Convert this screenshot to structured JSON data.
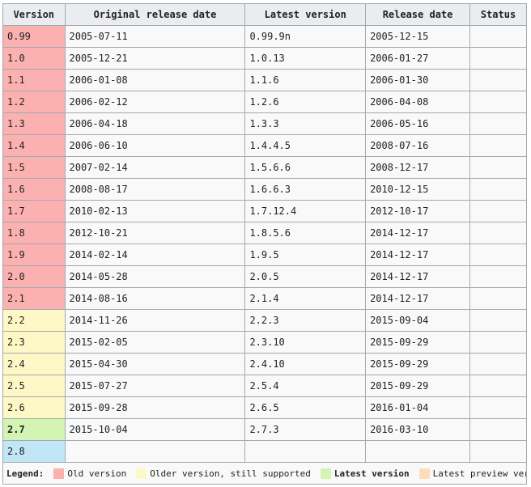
{
  "colors": {
    "header_bg": "#eaecf0",
    "border": "#a2a9b1",
    "cell_bg": "#f9f9f9",
    "old": "#fcb1b1",
    "older_supported": "#fef8c6",
    "latest": "#d4f4b4",
    "preview": "#fedcba",
    "future": "#c1e6f5"
  },
  "table": {
    "headers": {
      "version": "Version",
      "original_release_date": "Original release date",
      "latest_version": "Latest version",
      "release_date": "Release date",
      "status": "Status"
    },
    "rows": [
      {
        "version": "0.99",
        "original": "2005-07-11",
        "latest": "0.99.9n",
        "release": "2005-12-15",
        "status": "",
        "class": "v-old"
      },
      {
        "version": "1.0",
        "original": "2005-12-21",
        "latest": "1.0.13",
        "release": "2006-01-27",
        "status": "",
        "class": "v-old"
      },
      {
        "version": "1.1",
        "original": "2006-01-08",
        "latest": "1.1.6",
        "release": "2006-01-30",
        "status": "",
        "class": "v-old"
      },
      {
        "version": "1.2",
        "original": "2006-02-12",
        "latest": "1.2.6",
        "release": "2006-04-08",
        "status": "",
        "class": "v-old"
      },
      {
        "version": "1.3",
        "original": "2006-04-18",
        "latest": "1.3.3",
        "release": "2006-05-16",
        "status": "",
        "class": "v-old"
      },
      {
        "version": "1.4",
        "original": "2006-06-10",
        "latest": "1.4.4.5",
        "release": "2008-07-16",
        "status": "",
        "class": "v-old"
      },
      {
        "version": "1.5",
        "original": "2007-02-14",
        "latest": "1.5.6.6",
        "release": "2008-12-17",
        "status": "",
        "class": "v-old"
      },
      {
        "version": "1.6",
        "original": "2008-08-17",
        "latest": "1.6.6.3",
        "release": "2010-12-15",
        "status": "",
        "class": "v-old"
      },
      {
        "version": "1.7",
        "original": "2010-02-13",
        "latest": "1.7.12.4",
        "release": "2012-10-17",
        "status": "",
        "class": "v-old"
      },
      {
        "version": "1.8",
        "original": "2012-10-21",
        "latest": "1.8.5.6",
        "release": "2014-12-17",
        "status": "",
        "class": "v-old"
      },
      {
        "version": "1.9",
        "original": "2014-02-14",
        "latest": "1.9.5",
        "release": "2014-12-17",
        "status": "",
        "class": "v-old"
      },
      {
        "version": "2.0",
        "original": "2014-05-28",
        "latest": "2.0.5",
        "release": "2014-12-17",
        "status": "",
        "class": "v-old"
      },
      {
        "version": "2.1",
        "original": "2014-08-16",
        "latest": "2.1.4",
        "release": "2014-12-17",
        "status": "",
        "class": "v-old"
      },
      {
        "version": "2.2",
        "original": "2014-11-26",
        "latest": "2.2.3",
        "release": "2015-09-04",
        "status": "",
        "class": "v-supported"
      },
      {
        "version": "2.3",
        "original": "2015-02-05",
        "latest": "2.3.10",
        "release": "2015-09-29",
        "status": "",
        "class": "v-supported"
      },
      {
        "version": "2.4",
        "original": "2015-04-30",
        "latest": "2.4.10",
        "release": "2015-09-29",
        "status": "",
        "class": "v-supported"
      },
      {
        "version": "2.5",
        "original": "2015-07-27",
        "latest": "2.5.4",
        "release": "2015-09-29",
        "status": "",
        "class": "v-supported"
      },
      {
        "version": "2.6",
        "original": "2015-09-28",
        "latest": "2.6.5",
        "release": "2016-01-04",
        "status": "",
        "class": "v-supported"
      },
      {
        "version": "2.7",
        "original": "2015-10-04",
        "latest": "2.7.3",
        "release": "2016-03-10",
        "status": "",
        "class": "v-latest"
      },
      {
        "version": "2.8",
        "original": "",
        "latest": "",
        "release": "",
        "status": "",
        "class": "v-future"
      }
    ]
  },
  "legend": {
    "title": "Legend:",
    "items": [
      {
        "label": "Old version",
        "color": "#fcb1b1",
        "bold": false,
        "icon": "old-version-swatch"
      },
      {
        "label": "Older version, still supported",
        "color": "#fef8c6",
        "bold": false,
        "icon": "older-supported-swatch"
      },
      {
        "label": "Latest version",
        "color": "#d4f4b4",
        "bold": true,
        "icon": "latest-version-swatch"
      },
      {
        "label": "Latest preview version",
        "color": "#fedcba",
        "bold": false,
        "icon": "preview-version-swatch"
      }
    ]
  }
}
